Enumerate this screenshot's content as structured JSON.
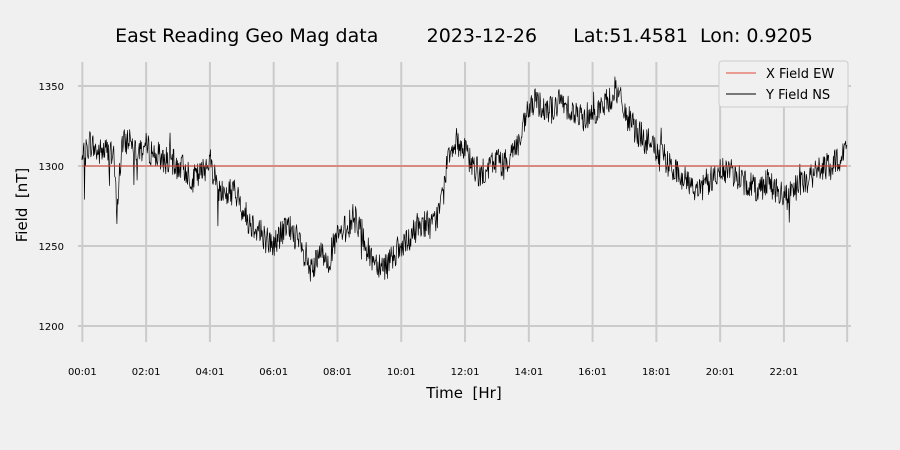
{
  "chart_data": {
    "type": "line",
    "title": "East Reading Geo Mag data        2023-12-26      Lat:51.4581  Lon: 0.9205",
    "xlabel": "Time  [Hr]",
    "ylabel": "Field  [nT]",
    "xlim": [
      -0.12,
      24.12
    ],
    "ylim": [
      1190,
      1365
    ],
    "x_ticks": [
      {
        "value": 0.0167,
        "label": "00:01"
      },
      {
        "value": 2.0167,
        "label": "02:01"
      },
      {
        "value": 4.0167,
        "label": "04:01"
      },
      {
        "value": 6.0167,
        "label": "06:01"
      },
      {
        "value": 8.0167,
        "label": "08:01"
      },
      {
        "value": 10.0167,
        "label": "10:01"
      },
      {
        "value": 12.0167,
        "label": "12:01"
      },
      {
        "value": 14.0167,
        "label": "14:01"
      },
      {
        "value": 16.0167,
        "label": "16:01"
      },
      {
        "value": 18.0167,
        "label": "18:01"
      },
      {
        "value": 20.0167,
        "label": "20:01"
      },
      {
        "value": 22.0167,
        "label": "22:01"
      }
    ],
    "y_ticks": [
      {
        "value": 1200,
        "label": "1200"
      },
      {
        "value": 1250,
        "label": "1250"
      },
      {
        "value": 1300,
        "label": "1300"
      },
      {
        "value": 1350,
        "label": "1350"
      }
    ],
    "grid": true,
    "legend_position": "top-right",
    "series": [
      {
        "name": "X Field EW",
        "color": "#e24a33",
        "x": [
          0.0,
          24.0
        ],
        "y": [
          1300,
          1300
        ]
      },
      {
        "name": "Y Field NS",
        "color": "#000000",
        "x": [
          0.0,
          0.25,
          0.5,
          0.75,
          1.0,
          1.1,
          1.25,
          1.5,
          1.75,
          2.0,
          2.25,
          2.5,
          2.75,
          3.0,
          3.25,
          3.5,
          3.75,
          4.0,
          4.25,
          4.5,
          4.75,
          5.0,
          5.25,
          5.5,
          5.75,
          6.0,
          6.25,
          6.5,
          6.75,
          7.0,
          7.25,
          7.5,
          7.75,
          8.0,
          8.25,
          8.5,
          8.75,
          9.0,
          9.25,
          9.5,
          9.75,
          10.0,
          10.25,
          10.5,
          10.75,
          11.0,
          11.25,
          11.5,
          11.75,
          12.0,
          12.25,
          12.5,
          12.75,
          13.0,
          13.25,
          13.5,
          13.75,
          14.0,
          14.25,
          14.5,
          14.75,
          15.0,
          15.25,
          15.5,
          15.75,
          16.0,
          16.25,
          16.5,
          16.75,
          17.0,
          17.25,
          17.5,
          17.75,
          18.0,
          18.25,
          18.5,
          18.75,
          19.0,
          19.25,
          19.5,
          19.75,
          20.0,
          20.25,
          20.5,
          20.75,
          21.0,
          21.25,
          21.5,
          21.75,
          22.0,
          22.25,
          22.5,
          22.75,
          23.0,
          23.25,
          23.5,
          23.75,
          24.0
        ],
        "y": [
          1302,
          1315,
          1308,
          1310,
          1305,
          1272,
          1312,
          1318,
          1310,
          1312,
          1308,
          1305,
          1303,
          1300,
          1298,
          1292,
          1295,
          1305,
          1288,
          1282,
          1285,
          1275,
          1265,
          1262,
          1255,
          1250,
          1258,
          1262,
          1255,
          1240,
          1235,
          1245,
          1242,
          1255,
          1260,
          1268,
          1262,
          1245,
          1240,
          1238,
          1245,
          1248,
          1252,
          1262,
          1265,
          1262,
          1275,
          1310,
          1315,
          1310,
          1300,
          1295,
          1298,
          1305,
          1300,
          1310,
          1315,
          1335,
          1340,
          1338,
          1335,
          1340,
          1338,
          1332,
          1330,
          1335,
          1336,
          1340,
          1348,
          1335,
          1325,
          1320,
          1315,
          1310,
          1305,
          1298,
          1295,
          1290,
          1285,
          1288,
          1292,
          1295,
          1298,
          1295,
          1290,
          1288,
          1285,
          1292,
          1285,
          1280,
          1282,
          1288,
          1292,
          1295,
          1300,
          1298,
          1305,
          1312
        ]
      }
    ]
  }
}
